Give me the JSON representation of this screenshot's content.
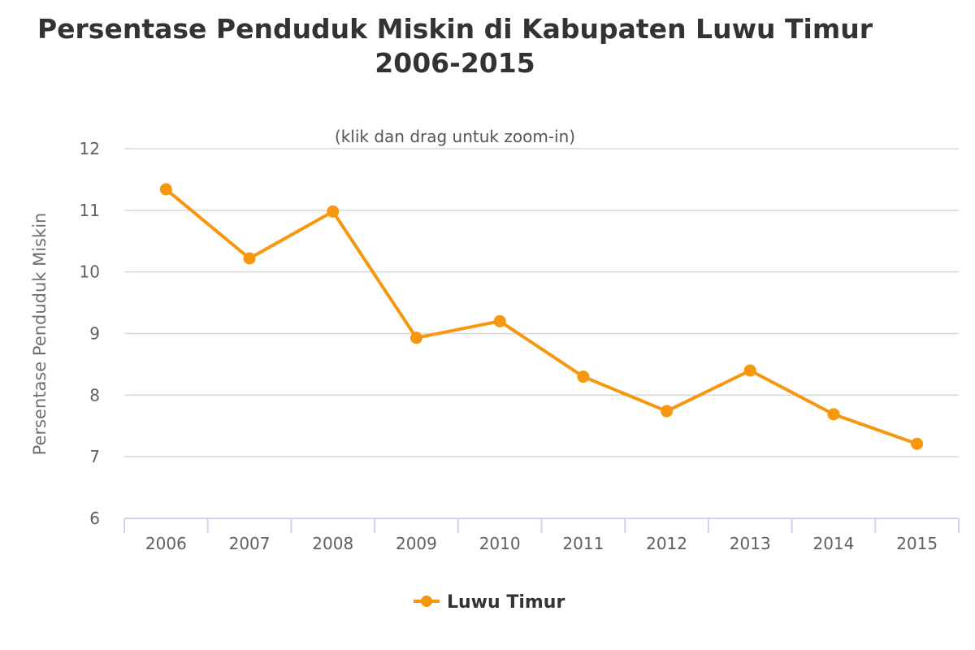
{
  "chart_data": {
    "type": "line",
    "title": "Persentase Penduduk Miskin di Kabupaten Luwu Timur",
    "title_line2": "2006-2015",
    "subtitle": "(klik dan drag untuk zoom-in)",
    "xlabel": "",
    "ylabel": "Persentase Penduduk Miskin",
    "ylim": [
      6,
      12
    ],
    "yticks": [
      "6",
      "7",
      "8",
      "9",
      "10",
      "11",
      "12"
    ],
    "categories": [
      "2006",
      "2007",
      "2008",
      "2009",
      "2010",
      "2011",
      "2012",
      "2013",
      "2014",
      "2015"
    ],
    "series": [
      {
        "name": "Luwu Timur",
        "color": "#F7960F",
        "values": [
          11.34,
          10.22,
          10.98,
          8.93,
          9.2,
          8.3,
          7.74,
          8.4,
          7.69,
          7.21
        ]
      }
    ],
    "grid": true,
    "legend": "bottom-center"
  }
}
